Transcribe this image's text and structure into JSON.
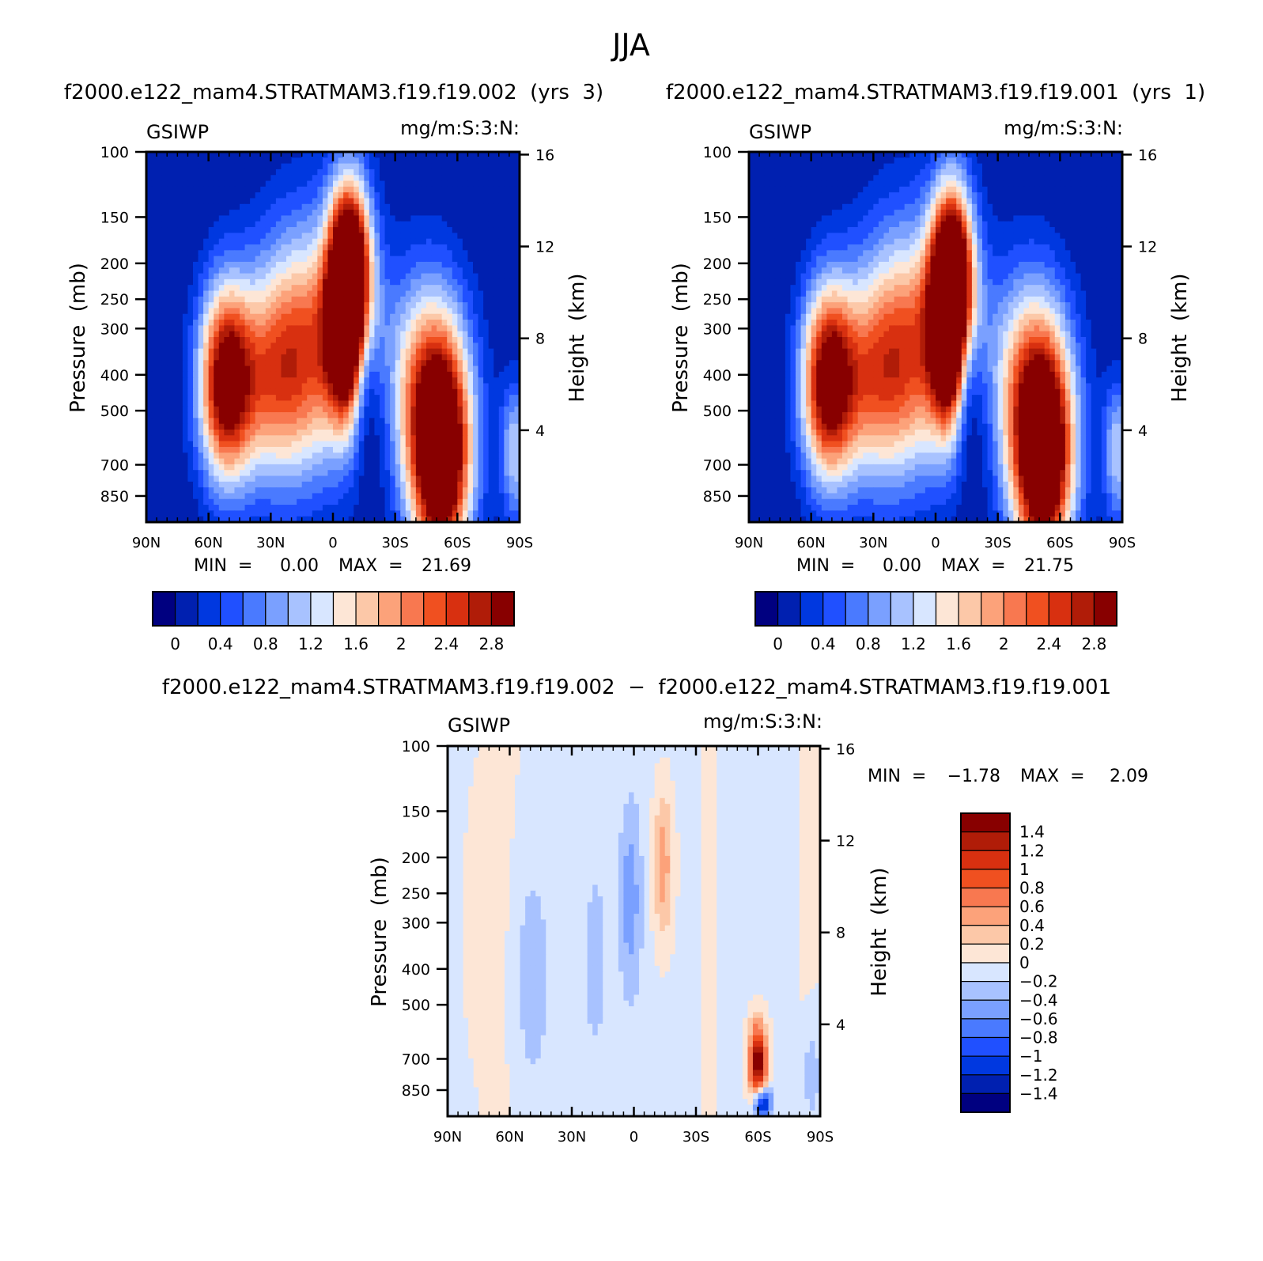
{
  "figure": {
    "title": "JJA"
  },
  "chart_data": [
    {
      "type": "heatmap",
      "title": "f2000.e122_mam4.STRATMAM3.f19.f19.002  (yrs  3)",
      "variable": "GSIWP",
      "units": "mg/m:S:3:N:",
      "ylabel": "Pressure  (mb)",
      "ylabel_right": "Height  (km)",
      "x_ticks": [
        "90N",
        "60N",
        "30N",
        "0",
        "30S",
        "60S",
        "90S"
      ],
      "x_range": [
        90,
        -90
      ],
      "y_ticks": [
        100,
        150,
        200,
        250,
        300,
        400,
        500,
        700,
        850
      ],
      "y_range": [
        100,
        1000
      ],
      "height_ticks": [
        16,
        12,
        8,
        4
      ],
      "min_label": "MIN  =",
      "min_value": "0.00",
      "max_label": "MAX  =",
      "max_value": "21.69",
      "colorbar_labels": [
        "0",
        "0.4",
        "0.8",
        "1.2",
        "1.6",
        "2",
        "2.4",
        "2.8"
      ],
      "colors": [
        "#000080",
        "#0020b0",
        "#0038e0",
        "#2050ff",
        "#4a7aff",
        "#7aa0ff",
        "#a8c2ff",
        "#d8e6ff",
        "#fde6d6",
        "#fcc8a8",
        "#fca27a",
        "#f87850",
        "#f05020",
        "#d83010",
        "#b01c08",
        "#880000"
      ],
      "features": [
        {
          "name": "tropical-upper-maximum",
          "lat": -8,
          "p": 250,
          "peak": 22
        },
        {
          "name": "nh-midlat-maximum",
          "lat": 52,
          "p": 420,
          "peak": 6
        },
        {
          "name": "sh-midlat-maximum",
          "lat": -52,
          "p": 680,
          "peak": 9
        }
      ]
    },
    {
      "type": "heatmap",
      "title": "f2000.e122_mam4.STRATMAM3.f19.f19.001  (yrs  1)",
      "variable": "GSIWP",
      "units": "mg/m:S:3:N:",
      "ylabel": "Pressure  (mb)",
      "ylabel_right": "Height  (km)",
      "x_ticks": [
        "90N",
        "60N",
        "30N",
        "0",
        "30S",
        "60S",
        "90S"
      ],
      "x_range": [
        90,
        -90
      ],
      "y_ticks": [
        100,
        150,
        200,
        250,
        300,
        400,
        500,
        700,
        850
      ],
      "y_range": [
        100,
        1000
      ],
      "height_ticks": [
        16,
        12,
        8,
        4
      ],
      "min_label": "MIN  =",
      "min_value": "0.00",
      "max_label": "MAX  =",
      "max_value": "21.75",
      "colorbar_labels": [
        "0",
        "0.4",
        "0.8",
        "1.2",
        "1.6",
        "2",
        "2.4",
        "2.8"
      ],
      "colors": [
        "#000080",
        "#0020b0",
        "#0038e0",
        "#2050ff",
        "#4a7aff",
        "#7aa0ff",
        "#a8c2ff",
        "#d8e6ff",
        "#fde6d6",
        "#fcc8a8",
        "#fca27a",
        "#f87850",
        "#f05020",
        "#d83010",
        "#b01c08",
        "#880000"
      ],
      "features": [
        {
          "name": "tropical-upper-maximum",
          "lat": -8,
          "p": 260,
          "peak": 22
        },
        {
          "name": "nh-midlat-maximum",
          "lat": 52,
          "p": 420,
          "peak": 6
        },
        {
          "name": "sh-midlat-maximum",
          "lat": -52,
          "p": 680,
          "peak": 9
        }
      ]
    },
    {
      "type": "heatmap",
      "title": "f2000.e122_mam4.STRATMAM3.f19.f19.002  −  f2000.e122_mam4.STRATMAM3.f19.f19.001",
      "variable": "GSIWP",
      "units": "mg/m:S:3:N:",
      "ylabel": "Pressure  (mb)",
      "ylabel_right": "Height  (km)",
      "x_ticks": [
        "90N",
        "60N",
        "30N",
        "0",
        "30S",
        "60S",
        "90S"
      ],
      "x_range": [
        90,
        -90
      ],
      "y_ticks": [
        100,
        150,
        200,
        250,
        300,
        400,
        500,
        700,
        850
      ],
      "y_range": [
        100,
        1000
      ],
      "height_ticks": [
        16,
        12,
        8,
        4
      ],
      "min_label": "MIN  =",
      "min_value": "−1.78",
      "max_label": "MAX  =",
      "max_value": "2.09",
      "colorbar_labels": [
        "1.4",
        "1.2",
        "1",
        "0.8",
        "0.6",
        "0.4",
        "0.2",
        "0",
        "−0.2",
        "−0.4",
        "−0.6",
        "−0.8",
        "−1",
        "−1.2",
        "−1.4"
      ],
      "colors": [
        "#880000",
        "#b01c08",
        "#d83010",
        "#f05020",
        "#f87850",
        "#fca27a",
        "#fcc8a8",
        "#fde6d6",
        "#d8e6ff",
        "#a8c2ff",
        "#7aa0ff",
        "#4a7aff",
        "#2050ff",
        "#0038e0",
        "#0020b0",
        "#000080"
      ],
      "features": [
        {
          "name": "positive-upper-trop",
          "lat": -14,
          "p": 210,
          "peak": 0.6
        },
        {
          "name": "positive-sh-low",
          "lat": -60,
          "p": 720,
          "peak": 2.09
        },
        {
          "name": "negative-sh-surface",
          "lat": -60,
          "p": 900,
          "peak": -1.78
        },
        {
          "name": "negative-equatorial",
          "lat": 2,
          "p": 260,
          "peak": -0.5
        }
      ]
    }
  ]
}
